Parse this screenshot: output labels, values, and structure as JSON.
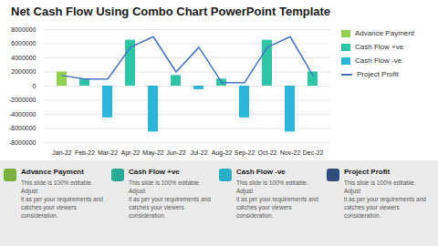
{
  "chart_data": {
    "type": "bar",
    "title": "Net Cash Flow Using Combo Chart PowerPoint Template",
    "categories": [
      "Jan-22",
      "Feb-22",
      "Mar-22",
      "Apr-22",
      "May-22",
      "Jun-22",
      "Jul-22",
      "Aug-22",
      "Sep-22",
      "Oct-22",
      "Nov-22",
      "Dec-22"
    ],
    "series": [
      {
        "name": "Advance Payment",
        "type": "bar",
        "color": "#92d050",
        "values": [
          2000000,
          0,
          0,
          0,
          0,
          0,
          0,
          0,
          0,
          0,
          0,
          0
        ]
      },
      {
        "name": "Cash Flow +ve",
        "type": "bar",
        "color": "#2ec4a5",
        "values": [
          0,
          1000000,
          0,
          6500000,
          0,
          1500000,
          0,
          1000000,
          0,
          6500000,
          0,
          2000000
        ]
      },
      {
        "name": "Cash Flow -ve",
        "type": "bar",
        "color": "#2bb5d8",
        "values": [
          0,
          0,
          -4500000,
          0,
          -6500000,
          0,
          -500000,
          0,
          -4500000,
          0,
          -6500000,
          0
        ]
      },
      {
        "name": "Project Profit",
        "type": "line",
        "color": "#4472c4",
        "values": [
          1500000,
          1000000,
          1000000,
          5500000,
          7000000,
          2000000,
          5500000,
          500000,
          500000,
          5500000,
          7000000,
          1500000
        ]
      }
    ],
    "ylim": [
      -8000000,
      8000000
    ],
    "yticks": [
      -8000000,
      -6000000,
      -4000000,
      -2000000,
      0,
      2000000,
      4000000,
      6000000,
      8000000
    ],
    "grid": true,
    "legend": "right",
    "annotations": [
      {
        "title": "Advance Payment",
        "color": "#7ab03c",
        "text": "This slide is 100% editable. Adjust\nit as per your requirements and\ncatches your viewers\nconsideration."
      },
      {
        "title": "Cash Flow +ve",
        "color": "#2aaa92",
        "text": "This slide is 100% editable. Adjust\nit as per your requirements and\ncatches your viewers\nconsideration."
      },
      {
        "title": "Cash Flow -ve",
        "color": "#2baec8",
        "text": "This slide is 100% editable. Adjust\nit as per your requirements and\ncatches your viewers\nconsideration."
      },
      {
        "title": "Project Profit",
        "color": "#2e4d7b",
        "text": "This slide is 100% editable. Adjust\nit as per your requirements and\ncatches your viewers\nconsideration."
      }
    ]
  }
}
